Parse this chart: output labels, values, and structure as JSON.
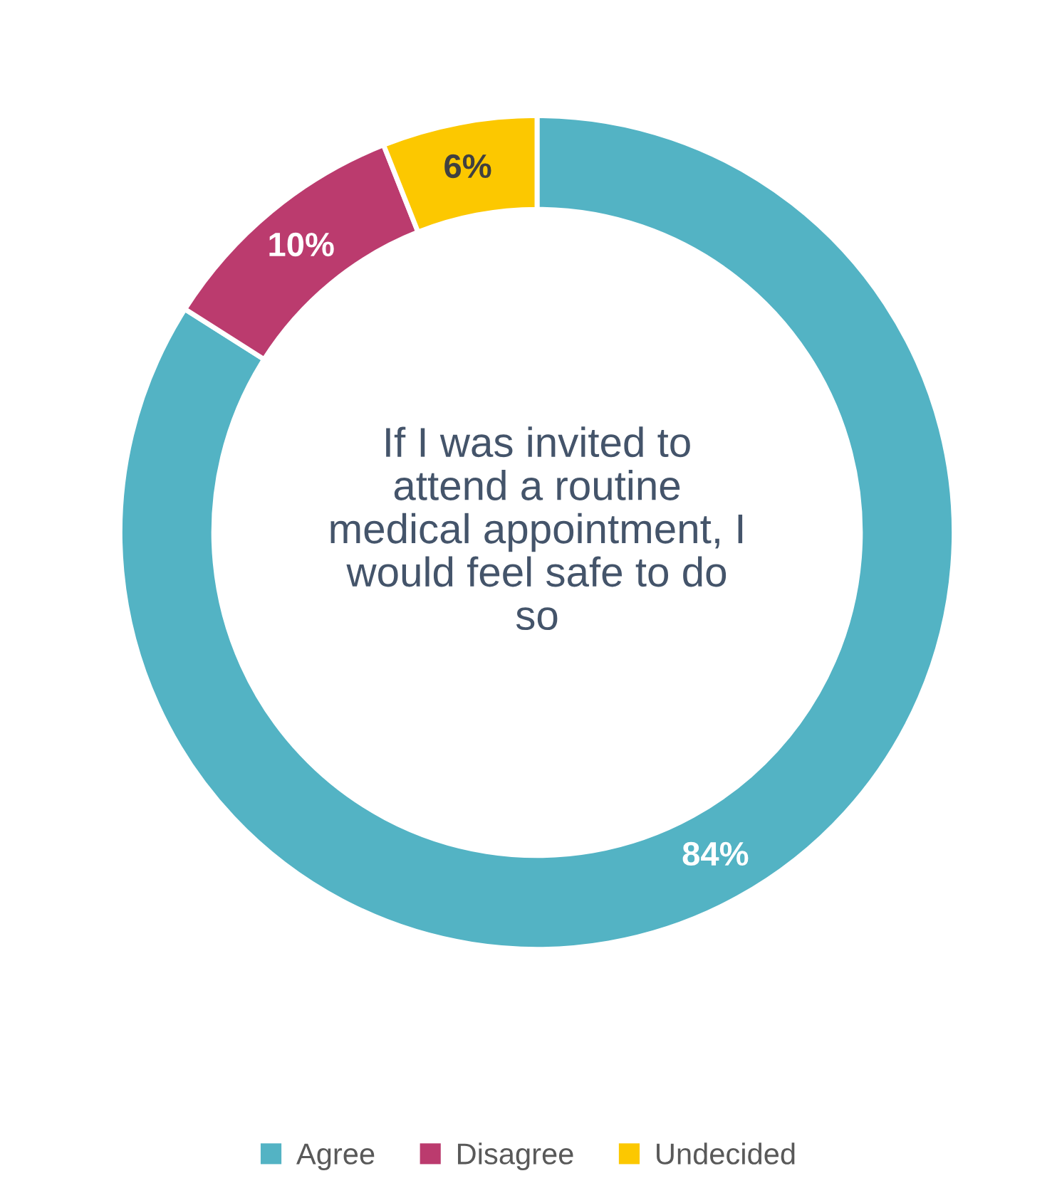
{
  "chart_data": {
    "type": "donut",
    "title": "If I was invited to attend a routine medical appointment, I would feel safe to do so",
    "categories": [
      "Agree",
      "Disagree",
      "Undecided"
    ],
    "values": [
      84,
      10,
      6
    ],
    "colors": [
      "#53b3c4",
      "#bb3b6e",
      "#fcc800"
    ],
    "value_labels": [
      "84%",
      "10%",
      "6%"
    ],
    "legend": "bottom"
  }
}
